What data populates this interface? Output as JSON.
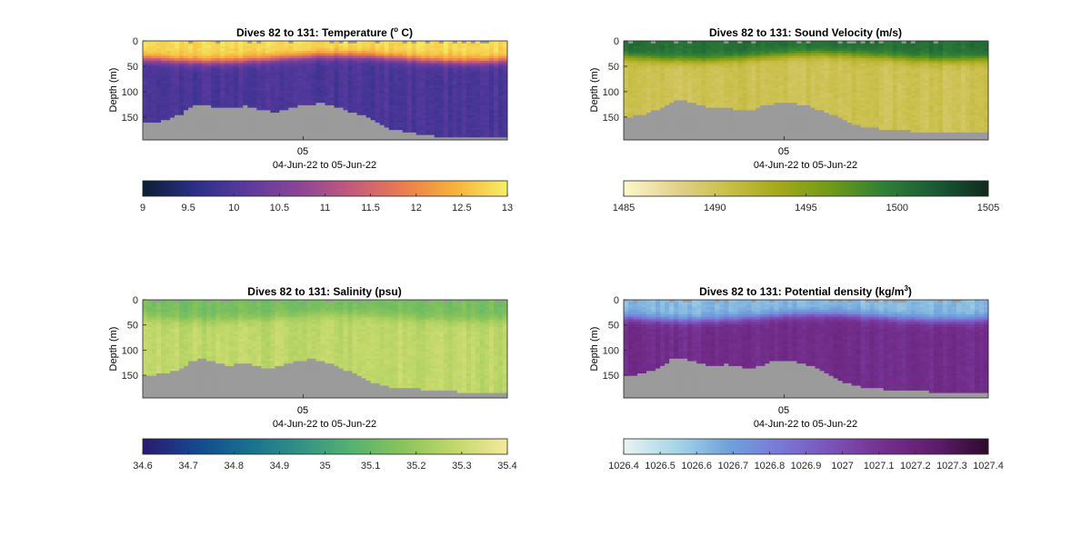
{
  "figure": {
    "title": "",
    "background": "#ffffff",
    "missing_color": "#9b9b9b"
  },
  "chart_data": [
    {
      "type": "heatmap",
      "title": "Dives 82 to 131: Temperature (",
      "title_sup": "o",
      "title_end": " C)",
      "ylabel": "Depth (m)",
      "ylim": [
        0,
        195
      ],
      "yticks": [
        0,
        50,
        100,
        150
      ],
      "xticks": [
        "05"
      ],
      "xlabel": "04-Jun-22 to 05-Jun-22",
      "colorbar": {
        "ticks": [
          "9",
          "9.5",
          "10",
          "10.5",
          "11",
          "11.5",
          "12",
          "12.5",
          "13"
        ],
        "min": 9,
        "max": 13,
        "colors": [
          "#0b1f33",
          "#2a2f87",
          "#5b3a9e",
          "#8c4596",
          "#c45a7e",
          "#ea7d4f",
          "#f7b23c",
          "#f6f066"
        ]
      },
      "seafloor_depth_m": [
        160,
        160,
        157,
        150,
        145,
        130,
        128,
        128,
        132,
        134,
        130,
        128,
        133,
        137,
        140,
        138,
        133,
        128,
        125,
        123,
        125,
        132,
        138,
        145,
        150,
        160,
        170,
        176,
        178,
        181,
        184,
        186,
        190,
        192,
        190,
        191,
        191,
        192,
        192,
        192
      ],
      "profile": {
        "surface_value": 12.8,
        "thermocline_mid_m": 35,
        "thermocline_width_m": 15,
        "deep_value": 9.95
      }
    },
    {
      "type": "heatmap",
      "title": "Dives 82 to 131: Sound Velocity (m/s)",
      "ylabel": "Depth (m)",
      "ylim": [
        0,
        195
      ],
      "yticks": [
        0,
        50,
        100,
        150
      ],
      "xticks": [
        "05"
      ],
      "xlabel": "04-Jun-22 to 05-Jun-22",
      "colorbar": {
        "ticks": [
          "1485",
          "1490",
          "1495",
          "1500",
          "1505"
        ],
        "min": 1485,
        "max": 1505,
        "colors": [
          "#fbf8cc",
          "#e3d28e",
          "#c9bf4a",
          "#a5a81a",
          "#6d9a18",
          "#2f7f37",
          "#1a5a33",
          "#102a1e"
        ]
      },
      "seafloor_depth_m": [
        150,
        148,
        144,
        138,
        130,
        120,
        118,
        121,
        125,
        130,
        131,
        132,
        136,
        138,
        134,
        128,
        124,
        120,
        122,
        126,
        130,
        136,
        144,
        150,
        158,
        166,
        170,
        172,
        174,
        176,
        177,
        178,
        179,
        181,
        182,
        181,
        181,
        182,
        182,
        182
      ],
      "profile": {
        "surface_value": 1500.5,
        "thermocline_mid_m": 32,
        "thermocline_width_m": 15,
        "deep_value": 1490.3
      }
    },
    {
      "type": "heatmap",
      "title": "Dives 82 to 131: Salinity (psu)",
      "ylabel": "Depth (m)",
      "ylim": [
        0,
        195
      ],
      "yticks": [
        0,
        50,
        100,
        150
      ],
      "xticks": [
        "05"
      ],
      "xlabel": "04-Jun-22 to 05-Jun-22",
      "colorbar": {
        "ticks": [
          "34.6",
          "34.7",
          "34.8",
          "34.9",
          "35",
          "35.1",
          "35.2",
          "35.3",
          "35.4"
        ],
        "min": 34.6,
        "max": 35.4,
        "colors": [
          "#2a1a6e",
          "#15468f",
          "#166f8f",
          "#2f9285",
          "#55b26f",
          "#8ac45a",
          "#c2d86a",
          "#f4ea9c"
        ]
      },
      "seafloor_depth_m": [
        150,
        150,
        147,
        143,
        135,
        122,
        118,
        120,
        125,
        130,
        128,
        126,
        132,
        137,
        135,
        128,
        124,
        120,
        118,
        120,
        126,
        133,
        142,
        150,
        158,
        166,
        172,
        174,
        176,
        177,
        178,
        180,
        181,
        182,
        183,
        183,
        184,
        184,
        184,
        184
      ],
      "profile": {
        "surface_value": 35.13,
        "thermocline_mid_m": 35,
        "thermocline_width_m": 18,
        "deep_value": 35.28
      }
    },
    {
      "type": "heatmap",
      "title": "Dives 82 to 131: Potential density (kg/m",
      "title_sup": "3",
      "title_end": ")",
      "ylabel": "Depth (m)",
      "ylim": [
        0,
        195
      ],
      "yticks": [
        0,
        50,
        100,
        150
      ],
      "xticks": [
        "05"
      ],
      "xlabel": "04-Jun-22 to 05-Jun-22",
      "colorbar": {
        "ticks": [
          "1026.4",
          "1026.5",
          "1026.6",
          "1026.7",
          "1026.8",
          "1026.9",
          "1027",
          "1027.1",
          "1027.2",
          "1027.3",
          "1027.4"
        ],
        "min": 1026.4,
        "max": 1027.4,
        "colors": [
          "#e8f3f4",
          "#a8d6e6",
          "#6fa3dc",
          "#7a78d8",
          "#7a52b8",
          "#742f8e",
          "#5e1c6c",
          "#2c0a2a"
        ]
      },
      "seafloor_depth_m": [
        152,
        150,
        146,
        140,
        130,
        118,
        115,
        120,
        126,
        130,
        130,
        128,
        132,
        137,
        135,
        128,
        122,
        120,
        122,
        126,
        132,
        140,
        150,
        158,
        166,
        172,
        174,
        176,
        178,
        180,
        181,
        182,
        182,
        183,
        183,
        184,
        184,
        184,
        184,
        184
      ],
      "profile": {
        "surface_value": 1026.62,
        "thermocline_mid_m": 35,
        "thermocline_width_m": 15,
        "deep_value": 1027.13
      }
    }
  ]
}
